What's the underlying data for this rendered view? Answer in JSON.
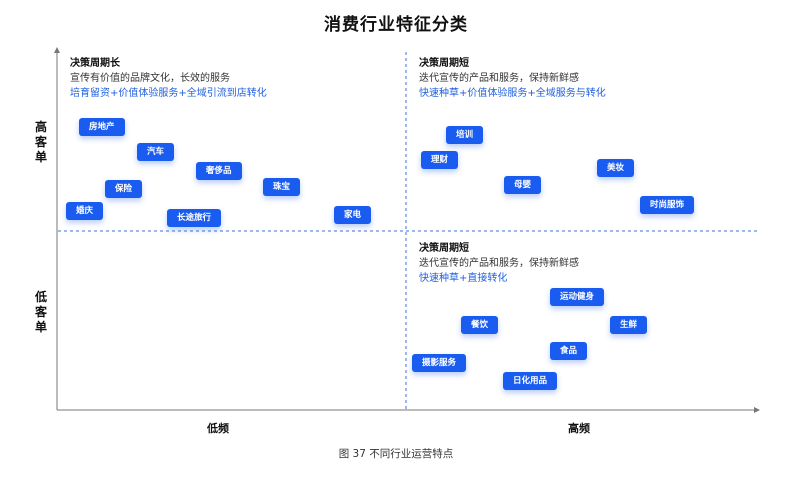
{
  "title": "消费行业特征分类",
  "quadrants": {
    "top_left": {
      "heading": "决策周期长",
      "description": "宣传有价值的品牌文化，长效的服务",
      "strategy": "培育留资+价值体验服务+全域引流到店转化"
    },
    "top_right": {
      "heading": "决策周期短",
      "description": "迭代宣传的产品和服务，保持新鲜感",
      "strategy": "快速种草+价值体验服务+全域服务与转化"
    },
    "bottom_right": {
      "heading": "决策周期短",
      "description": "迭代宣传的产品和服务，保持新鲜感",
      "strategy": "快速种草+直接转化"
    }
  },
  "axes": {
    "y_high": "高客单",
    "y_low": "低客单",
    "x_low": "低频",
    "x_high": "高频"
  },
  "tags": {
    "real_estate": "房地产",
    "auto": "汽车",
    "luxury": "奢侈品",
    "insurance": "保险",
    "jewelry": "珠宝",
    "wedding": "婚庆",
    "travel": "长途旅行",
    "appliance": "家电",
    "training": "培训",
    "finance": "理财",
    "maternal": "母婴",
    "beauty": "美妆",
    "fashion": "时尚服饰",
    "fitness": "运动健身",
    "catering": "餐饮",
    "fresh": "生鲜",
    "food": "食品",
    "photography": "摄影服务",
    "daily": "日化用品"
  },
  "caption": "图 37  不同行业运营特点",
  "colors": {
    "accent": "#1a5cf0",
    "strategy_text": "#1f5fe0",
    "divider": "#3b6fe0",
    "axis": "#777777"
  }
}
